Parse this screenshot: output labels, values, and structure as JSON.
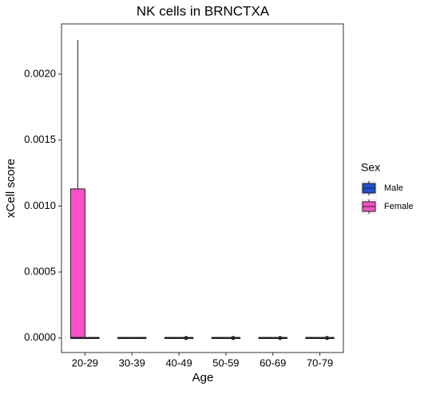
{
  "chart_data": {
    "type": "box",
    "title": "NK cells in BRNCTXA",
    "x_label": "Age",
    "y_label": "xCell score",
    "legend_title": "Sex",
    "legend_position": "right",
    "grid": false,
    "categories": [
      "20-29",
      "30-39",
      "40-49",
      "50-59",
      "60-69",
      "70-79"
    ],
    "ylim": [
      -0.00011,
      0.00238
    ],
    "yticks": [
      {
        "value": 0,
        "label": "0.0000"
      },
      {
        "value": 0.0005,
        "label": "0.0005"
      },
      {
        "value": 0.001,
        "label": "0.0010"
      },
      {
        "value": 0.0015,
        "label": "0.0015"
      },
      {
        "value": 0.002,
        "label": "0.0020"
      }
    ],
    "series": [
      {
        "name": "Male",
        "color": "#1f4fd8",
        "boxes": [
          {
            "min": 0,
            "q1": 0,
            "median": 0,
            "q3": 0,
            "max": 0,
            "outliers": []
          },
          {
            "min": 0,
            "q1": 0,
            "median": 0,
            "q3": 0,
            "max": 0,
            "outliers": []
          },
          {
            "min": 0,
            "q1": 0,
            "median": 0,
            "q3": 0,
            "max": 0,
            "outliers": [
              0
            ]
          },
          {
            "min": 0,
            "q1": 0,
            "median": 0,
            "q3": 0,
            "max": 0,
            "outliers": [
              0
            ]
          },
          {
            "min": 0,
            "q1": 0,
            "median": 0,
            "q3": 0,
            "max": 0,
            "outliers": [
              0
            ]
          },
          {
            "min": 0,
            "q1": 0,
            "median": 0,
            "q3": 0,
            "max": 0,
            "outliers": [
              0
            ]
          }
        ]
      },
      {
        "name": "Female",
        "color": "#ff4fc8",
        "boxes": [
          {
            "min": 0,
            "q1": 0,
            "median": 0,
            "q3": 0.00113,
            "max": 0.00226,
            "outliers": []
          },
          {
            "min": 0,
            "q1": 0,
            "median": 0,
            "q3": 0,
            "max": 0,
            "outliers": []
          },
          {
            "min": 0,
            "q1": 0,
            "median": 0,
            "q3": 0,
            "max": 0,
            "outliers": []
          },
          {
            "min": 0,
            "q1": 0,
            "median": 0,
            "q3": 0,
            "max": 0,
            "outliers": []
          },
          {
            "min": 0,
            "q1": 0,
            "median": 0,
            "q3": 0,
            "max": 0,
            "outliers": []
          },
          {
            "min": 0,
            "q1": 0,
            "median": 0,
            "q3": 0,
            "max": 0,
            "outliers": []
          }
        ]
      }
    ]
  }
}
